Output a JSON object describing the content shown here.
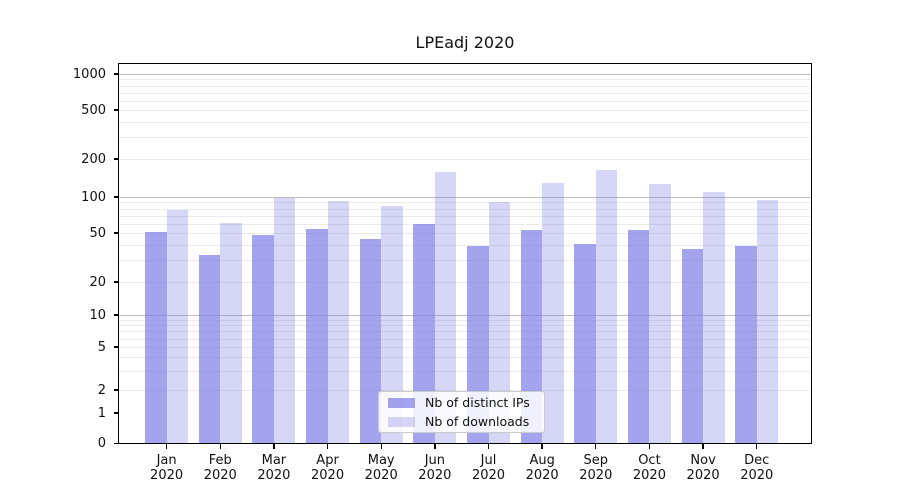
{
  "title": "LPEadj 2020",
  "chart_data": {
    "type": "bar",
    "title": "LPEadj 2020",
    "categories": [
      "Jan 2020",
      "Feb 2020",
      "Mar 2020",
      "Apr 2020",
      "May 2020",
      "Jun 2020",
      "Jul 2020",
      "Aug 2020",
      "Sep 2020",
      "Oct 2020",
      "Nov 2020",
      "Dec 2020"
    ],
    "series": [
      {
        "name": "Nb of distinct IPs",
        "color": "rgba(119,119,230,0.68)",
        "values": [
          51,
          33,
          48,
          54,
          45,
          60,
          39,
          53,
          41,
          53,
          37,
          39
        ]
      },
      {
        "name": "Nb of downloads",
        "color": "rgba(119,119,230,0.30)",
        "values": [
          78,
          61,
          99,
          92,
          84,
          157,
          91,
          128,
          165,
          126,
          110,
          94
        ]
      }
    ],
    "xlabel": "",
    "ylabel": "",
    "yscale": "symlog",
    "yticks": [
      0,
      1,
      2,
      5,
      10,
      20,
      50,
      100,
      200,
      500,
      1000
    ],
    "ylim": [
      0,
      1230
    ],
    "grid": "horizontal major+minor",
    "legend_position": "lower center inside"
  },
  "legend": {
    "items": [
      {
        "label": "Nb of distinct IPs",
        "swatch_color": "rgba(119,119,230,0.68)"
      },
      {
        "label": "Nb of downloads",
        "swatch_color": "rgba(119,119,230,0.30)"
      }
    ]
  },
  "colors": {
    "bar_base": "#7777e6",
    "grid_major": "#bdbdbd",
    "grid_minor": "#ebebeb",
    "text": "#111111"
  }
}
